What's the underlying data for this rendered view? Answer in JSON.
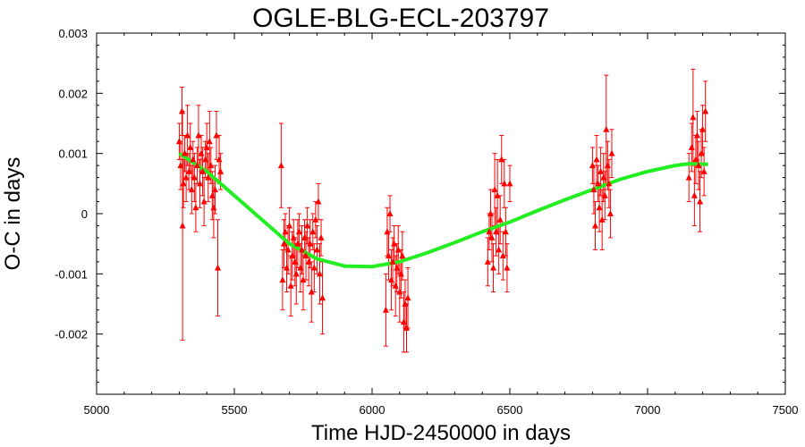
{
  "chart_data": {
    "type": "scatter",
    "title": "OGLE-BLG-ECL-203797",
    "xlabel": "Time HJD-2450000 in days",
    "ylabel": "O-C in days",
    "xlim": [
      5000,
      7500
    ],
    "ylim": [
      -0.003,
      0.003
    ],
    "xticks": [
      5000,
      5500,
      6000,
      6500,
      7000,
      7500
    ],
    "xtick_labels": [
      "5000",
      "5500",
      "6000",
      "6500",
      "7000",
      "7500"
    ],
    "yticks": [
      0.003,
      0.002,
      0.001,
      0,
      -0.001,
      -0.002
    ],
    "ytick_labels": [
      "0.003",
      "0.002",
      "0.001",
      "0",
      "-0.001",
      "-0.002"
    ],
    "grid": false,
    "colors": {
      "points": "#ff0000",
      "fit": "#22ee22",
      "axes": "#000000"
    },
    "series": [
      {
        "kind": "points-with-error-bars",
        "marker": "triangle",
        "points": [
          {
            "x": 5300,
            "y": 0.0012,
            "err": 0.0003
          },
          {
            "x": 5305,
            "y": 0.0008,
            "err": 0.0004
          },
          {
            "x": 5310,
            "y": 0.0017,
            "err": 0.0004
          },
          {
            "x": 5312,
            "y": -0.0002,
            "err": 0.0019
          },
          {
            "x": 5315,
            "y": 0.0005,
            "err": 0.0004
          },
          {
            "x": 5320,
            "y": 0.001,
            "err": 0.0003
          },
          {
            "x": 5325,
            "y": 0.0006,
            "err": 0.0004
          },
          {
            "x": 5330,
            "y": 0.0013,
            "err": 0.0005
          },
          {
            "x": 5335,
            "y": 0.0007,
            "err": 0.0003
          },
          {
            "x": 5340,
            "y": 0.0011,
            "err": 0.0004
          },
          {
            "x": 5345,
            "y": 0.0004,
            "err": 0.0004
          },
          {
            "x": 5350,
            "y": 0.0009,
            "err": 0.0003
          },
          {
            "x": 5355,
            "y": 0.0006,
            "err": 0.0004
          },
          {
            "x": 5360,
            "y": 0.0001,
            "err": 0.0004
          },
          {
            "x": 5365,
            "y": 0.0008,
            "err": 0.0003
          },
          {
            "x": 5370,
            "y": 0.0013,
            "err": 0.0005
          },
          {
            "x": 5375,
            "y": 0.0005,
            "err": 0.0004
          },
          {
            "x": 5380,
            "y": 0.001,
            "err": 0.0003
          },
          {
            "x": 5385,
            "y": 0.0007,
            "err": 0.0004
          },
          {
            "x": 5390,
            "y": 0.0002,
            "err": 0.0004
          },
          {
            "x": 5395,
            "y": 0.0009,
            "err": 0.0003
          },
          {
            "x": 5400,
            "y": 0.0011,
            "err": 0.0004
          },
          {
            "x": 5405,
            "y": 0.0006,
            "err": 0.0004
          },
          {
            "x": 5410,
            "y": 0.0012,
            "err": 0.0005
          },
          {
            "x": 5415,
            "y": 0.0008,
            "err": 0.0003
          },
          {
            "x": 5420,
            "y": 0.0003,
            "err": 0.0004
          },
          {
            "x": 5425,
            "y": 0.0001,
            "err": 0.0005
          },
          {
            "x": 5430,
            "y": 0.0004,
            "err": 0.0004
          },
          {
            "x": 5435,
            "y": 0.0013,
            "err": 0.0004
          },
          {
            "x": 5440,
            "y": -0.0009,
            "err": 0.0008
          },
          {
            "x": 5445,
            "y": 0.0009,
            "err": 0.0004
          },
          {
            "x": 5450,
            "y": 0.0007,
            "err": 0.0003
          },
          {
            "x": 5670,
            "y": 0.0008,
            "err": 0.0007
          },
          {
            "x": 5675,
            "y": -0.0011,
            "err": 0.0005
          },
          {
            "x": 5680,
            "y": -0.0005,
            "err": 0.0004
          },
          {
            "x": 5685,
            "y": -0.0003,
            "err": 0.0003
          },
          {
            "x": 5690,
            "y": -0.0009,
            "err": 0.0004
          },
          {
            "x": 5695,
            "y": -0.0006,
            "err": 0.0004
          },
          {
            "x": 5700,
            "y": -0.0002,
            "err": 0.0003
          },
          {
            "x": 5705,
            "y": -0.0012,
            "err": 0.0005
          },
          {
            "x": 5710,
            "y": -0.0007,
            "err": 0.0004
          },
          {
            "x": 5715,
            "y": -0.0004,
            "err": 0.0003
          },
          {
            "x": 5720,
            "y": -0.0008,
            "err": 0.0004
          },
          {
            "x": 5725,
            "y": -0.001,
            "err": 0.0005
          },
          {
            "x": 5730,
            "y": -0.0005,
            "err": 0.0004
          },
          {
            "x": 5735,
            "y": -0.0003,
            "err": 0.0003
          },
          {
            "x": 5740,
            "y": -0.0009,
            "err": 0.0004
          },
          {
            "x": 5745,
            "y": -0.0006,
            "err": 0.0004
          },
          {
            "x": 5750,
            "y": -0.0011,
            "err": 0.0005
          },
          {
            "x": 5755,
            "y": -0.0004,
            "err": 0.0003
          },
          {
            "x": 5760,
            "y": -0.0007,
            "err": 0.0004
          },
          {
            "x": 5765,
            "y": -0.0002,
            "err": 0.0003
          },
          {
            "x": 5770,
            "y": -0.0008,
            "err": 0.0004
          },
          {
            "x": 5775,
            "y": -0.0005,
            "err": 0.0004
          },
          {
            "x": 5780,
            "y": -0.0013,
            "err": 0.0005
          },
          {
            "x": 5785,
            "y": -0.0003,
            "err": 0.0003
          },
          {
            "x": 5790,
            "y": -0.0009,
            "err": 0.0004
          },
          {
            "x": 5795,
            "y": -0.0001,
            "err": 0.0003
          },
          {
            "x": 5800,
            "y": -0.0006,
            "err": 0.0004
          },
          {
            "x": 5805,
            "y": 0.0002,
            "err": 0.0003
          },
          {
            "x": 5810,
            "y": -0.001,
            "err": 0.0005
          },
          {
            "x": 5815,
            "y": -0.0004,
            "err": 0.0003
          },
          {
            "x": 5820,
            "y": -0.0014,
            "err": 0.0006
          },
          {
            "x": 6050,
            "y": -0.0016,
            "err": 0.0006
          },
          {
            "x": 6055,
            "y": -0.0003,
            "err": 0.0004
          },
          {
            "x": 6060,
            "y": -0.0007,
            "err": 0.0004
          },
          {
            "x": 6065,
            "y": 0.0,
            "err": 0.0003
          },
          {
            "x": 6070,
            "y": -0.0011,
            "err": 0.0005
          },
          {
            "x": 6075,
            "y": -0.0008,
            "err": 0.0004
          },
          {
            "x": 6080,
            "y": -0.0005,
            "err": 0.0003
          },
          {
            "x": 6085,
            "y": -0.0012,
            "err": 0.0005
          },
          {
            "x": 6090,
            "y": -0.0009,
            "err": 0.0004
          },
          {
            "x": 6095,
            "y": -0.0006,
            "err": 0.0004
          },
          {
            "x": 6100,
            "y": -0.0013,
            "err": 0.0005
          },
          {
            "x": 6105,
            "y": -0.001,
            "err": 0.0004
          },
          {
            "x": 6110,
            "y": -0.0007,
            "err": 0.0004
          },
          {
            "x": 6115,
            "y": -0.0018,
            "err": 0.0005
          },
          {
            "x": 6120,
            "y": -0.0015,
            "err": 0.0004
          },
          {
            "x": 6125,
            "y": -0.0019,
            "err": 0.0004
          },
          {
            "x": 6130,
            "y": -0.0014,
            "err": 0.0005
          },
          {
            "x": 6420,
            "y": -0.0008,
            "err": 0.0004
          },
          {
            "x": 6425,
            "y": -0.0003,
            "err": 0.0003
          },
          {
            "x": 6430,
            "y": 0.0,
            "err": 0.0004
          },
          {
            "x": 6435,
            "y": -0.0004,
            "err": 0.0004
          },
          {
            "x": 6440,
            "y": -0.0009,
            "err": 0.0004
          },
          {
            "x": 6445,
            "y": 0.0004,
            "err": 0.0006
          },
          {
            "x": 6450,
            "y": -0.0003,
            "err": 0.0004
          },
          {
            "x": 6455,
            "y": 0.0003,
            "err": 0.0006
          },
          {
            "x": 6460,
            "y": -0.0006,
            "err": 0.0004
          },
          {
            "x": 6465,
            "y": -0.0001,
            "err": 0.0004
          },
          {
            "x": 6470,
            "y": 0.0009,
            "err": 0.0004
          },
          {
            "x": 6475,
            "y": -0.0007,
            "err": 0.0004
          },
          {
            "x": 6480,
            "y": 0.0005,
            "err": 0.0004
          },
          {
            "x": 6485,
            "y": -0.0003,
            "err": 0.0004
          },
          {
            "x": 6490,
            "y": -0.0009,
            "err": 0.0004
          },
          {
            "x": 6500,
            "y": 0.0005,
            "err": 0.0003
          },
          {
            "x": 6800,
            "y": 0.0008,
            "err": 0.0003
          },
          {
            "x": 6805,
            "y": 0.0004,
            "err": 0.0004
          },
          {
            "x": 6810,
            "y": -0.0002,
            "err": 0.0004
          },
          {
            "x": 6815,
            "y": 0.0009,
            "err": 0.0004
          },
          {
            "x": 6820,
            "y": 0.0005,
            "err": 0.0003
          },
          {
            "x": 6825,
            "y": 0.0001,
            "err": 0.0004
          },
          {
            "x": 6830,
            "y": 0.0007,
            "err": 0.0004
          },
          {
            "x": 6835,
            "y": -0.0001,
            "err": 0.0005
          },
          {
            "x": 6840,
            "y": 0.0006,
            "err": 0.0004
          },
          {
            "x": 6845,
            "y": 0.0003,
            "err": 0.0004
          },
          {
            "x": 6850,
            "y": 0.0014,
            "err": 0.0009
          },
          {
            "x": 6855,
            "y": 0.0008,
            "err": 0.0004
          },
          {
            "x": 6860,
            "y": 0.0005,
            "err": 0.0004
          },
          {
            "x": 6865,
            "y": 0.0,
            "err": 0.0004
          },
          {
            "x": 6870,
            "y": 0.001,
            "err": 0.0004
          },
          {
            "x": 7150,
            "y": 0.0006,
            "err": 0.0004
          },
          {
            "x": 7160,
            "y": 0.0011,
            "err": 0.0004
          },
          {
            "x": 7165,
            "y": 0.0016,
            "err": 0.0008
          },
          {
            "x": 7170,
            "y": 0.0003,
            "err": 0.0005
          },
          {
            "x": 7175,
            "y": 0.0009,
            "err": 0.0004
          },
          {
            "x": 7180,
            "y": 0.0013,
            "err": 0.0004
          },
          {
            "x": 7185,
            "y": 0.0008,
            "err": 0.0004
          },
          {
            "x": 7190,
            "y": 0.0002,
            "err": 0.0005
          },
          {
            "x": 7195,
            "y": 0.001,
            "err": 0.0004
          },
          {
            "x": 7200,
            "y": 0.0014,
            "err": 0.0004
          },
          {
            "x": 7205,
            "y": 0.0007,
            "err": 0.0004
          },
          {
            "x": 7210,
            "y": 0.0017,
            "err": 0.0005
          }
        ]
      },
      {
        "kind": "line",
        "x": [
          5300,
          5400,
          5500,
          5600,
          5700,
          5800,
          5900,
          6000,
          6100,
          6200,
          6300,
          6400,
          6500,
          6600,
          6700,
          6800,
          6900,
          7000,
          7100,
          7150,
          7220
        ],
        "y": [
          0.001,
          0.0007,
          0.0003,
          -0.0001,
          -0.0005,
          -0.00075,
          -0.00087,
          -0.00088,
          -0.0008,
          -0.00065,
          -0.00048,
          -0.0003,
          -0.00014,
          5e-05,
          0.00023,
          0.0004,
          0.00057,
          0.0007,
          0.0008,
          0.00083,
          0.00082
        ]
      }
    ]
  }
}
